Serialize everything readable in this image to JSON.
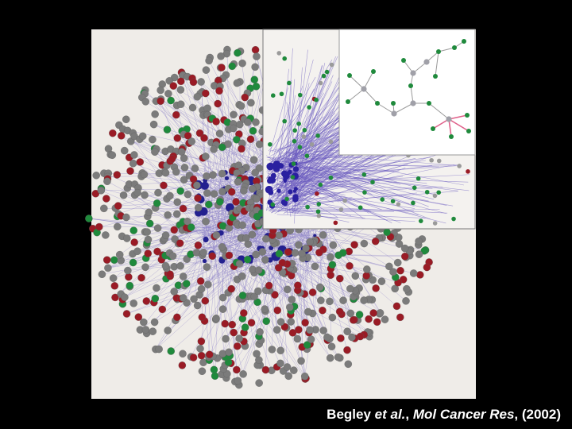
{
  "caption": {
    "parts": [
      "Begley ",
      "et al.",
      ", ",
      "Mol Cancer Res",
      ", (2002)"
    ]
  }
}
